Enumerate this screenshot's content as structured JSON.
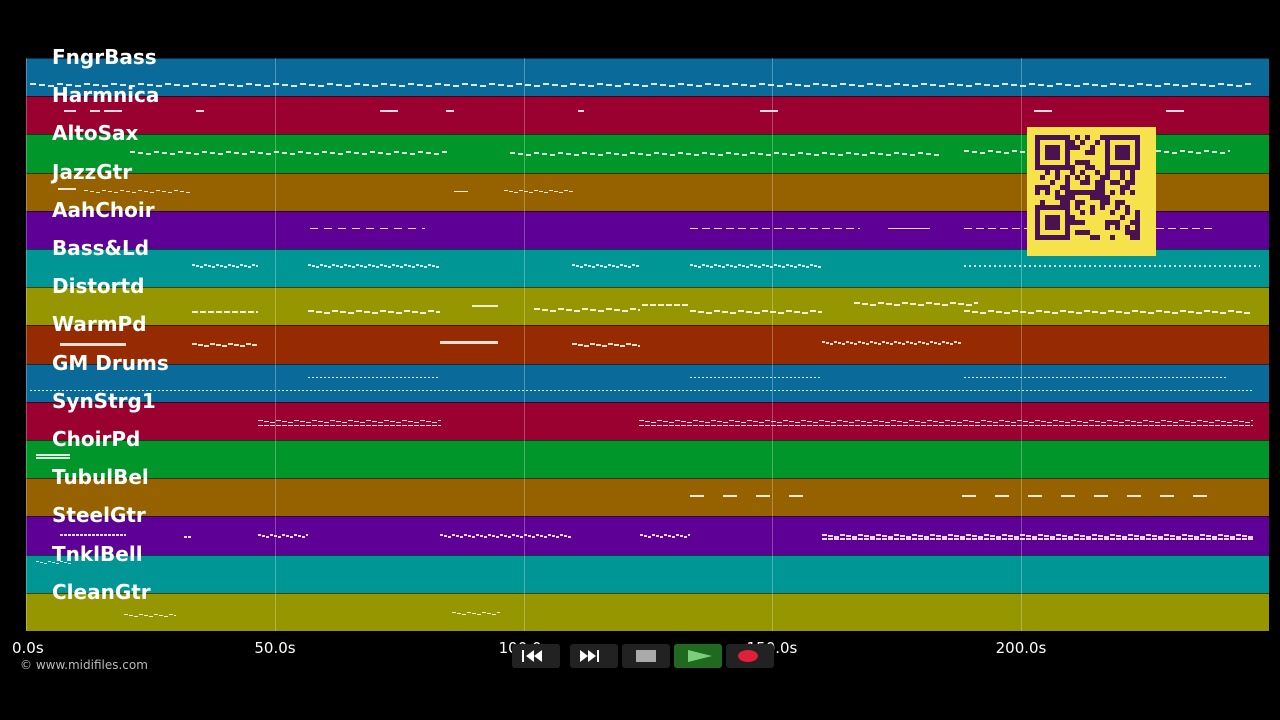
{
  "lanes": [
    {
      "name": "FngrBass",
      "color": "#0a6a9a"
    },
    {
      "name": "Harmnica",
      "color": "#9a0030"
    },
    {
      "name": "AltoSax",
      "color": "#00962a"
    },
    {
      "name": "JazzGtr",
      "color": "#966200"
    },
    {
      "name": "AahChoir",
      "color": "#5e0096"
    },
    {
      "name": "Bass&Ld",
      "color": "#009696"
    },
    {
      "name": "Distortd",
      "color": "#969600"
    },
    {
      "name": "WarmPd",
      "color": "#962a00"
    },
    {
      "name": "GM Drums",
      "color": "#0a6a9a"
    },
    {
      "name": "SynStrg1",
      "color": "#9a0030"
    },
    {
      "name": "ChoirPd",
      "color": "#00962a"
    },
    {
      "name": "TubulBel",
      "color": "#966200"
    },
    {
      "name": "SteelGtr",
      "color": "#5e0096"
    },
    {
      "name": "TnklBell",
      "color": "#009696"
    },
    {
      "name": "CleanGtr",
      "color": "#969600"
    }
  ],
  "timeline": {
    "ticks": [
      "0.0s",
      "50.0s",
      "100.0s",
      "150.0s",
      "200.0s"
    ]
  },
  "copyright": "© www.midifiles.com",
  "controls": {
    "rewind_icon": "rewind-icon",
    "fast_forward_icon": "fast-forward-icon",
    "stop_icon": "stop-icon",
    "play_icon": "play-icon",
    "record_icon": "record-icon",
    "play_color": "#2a8a2a",
    "record_color": "#e0203a"
  },
  "qr_code": {
    "icon": "qr-code-icon",
    "color": "#f6e24a"
  }
}
